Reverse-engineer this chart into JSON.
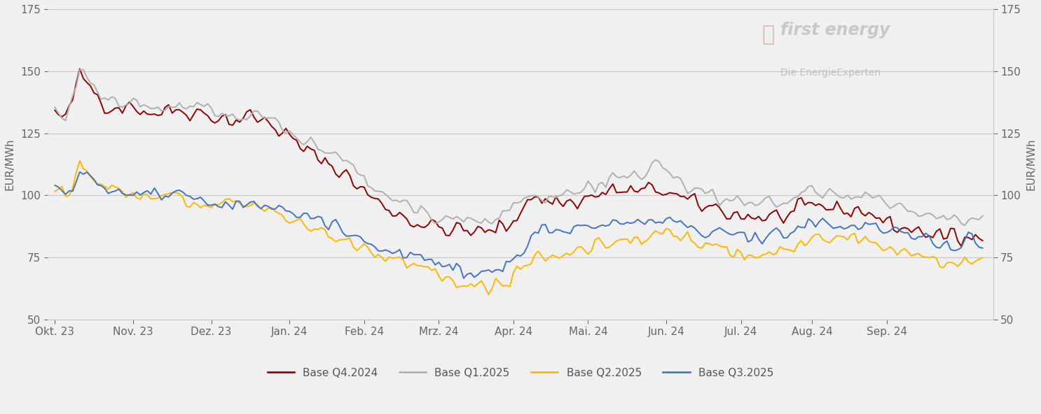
{
  "ylabel_left": "EUR/MWh",
  "ylabel_right": "EUR/MWh",
  "ylim": [
    50,
    175
  ],
  "yticks": [
    50,
    75,
    100,
    125,
    150,
    175
  ],
  "background_color": "#f0f0f0",
  "plot_background": "#f0f0f0",
  "grid_color": "#c8c8c8",
  "x_tick_labels": [
    "Okt. 23",
    "Nov. 23",
    "Dez. 23",
    "Jan. 24",
    "Feb. 24",
    "Mrz. 24",
    "Apr. 24",
    "Mai. 24",
    "Jun. 24",
    "Jul. 24",
    "Aug. 24",
    "Sep. 24"
  ],
  "series": [
    {
      "label": "Base Q4.2024",
      "color": "#8B0000"
    },
    {
      "label": "Base Q1.2025",
      "color": "#b0b0b0"
    },
    {
      "label": "Base Q2.2025",
      "color": "#FFB800"
    },
    {
      "label": "Base Q3.2025",
      "color": "#4472c4"
    }
  ],
  "line_width": 1.4,
  "legend_fontsize": 11,
  "tick_fontsize": 11,
  "ylabel_fontsize": 11,
  "watermark_text1": "first energy",
  "watermark_text2": "Die EnergieExperten"
}
